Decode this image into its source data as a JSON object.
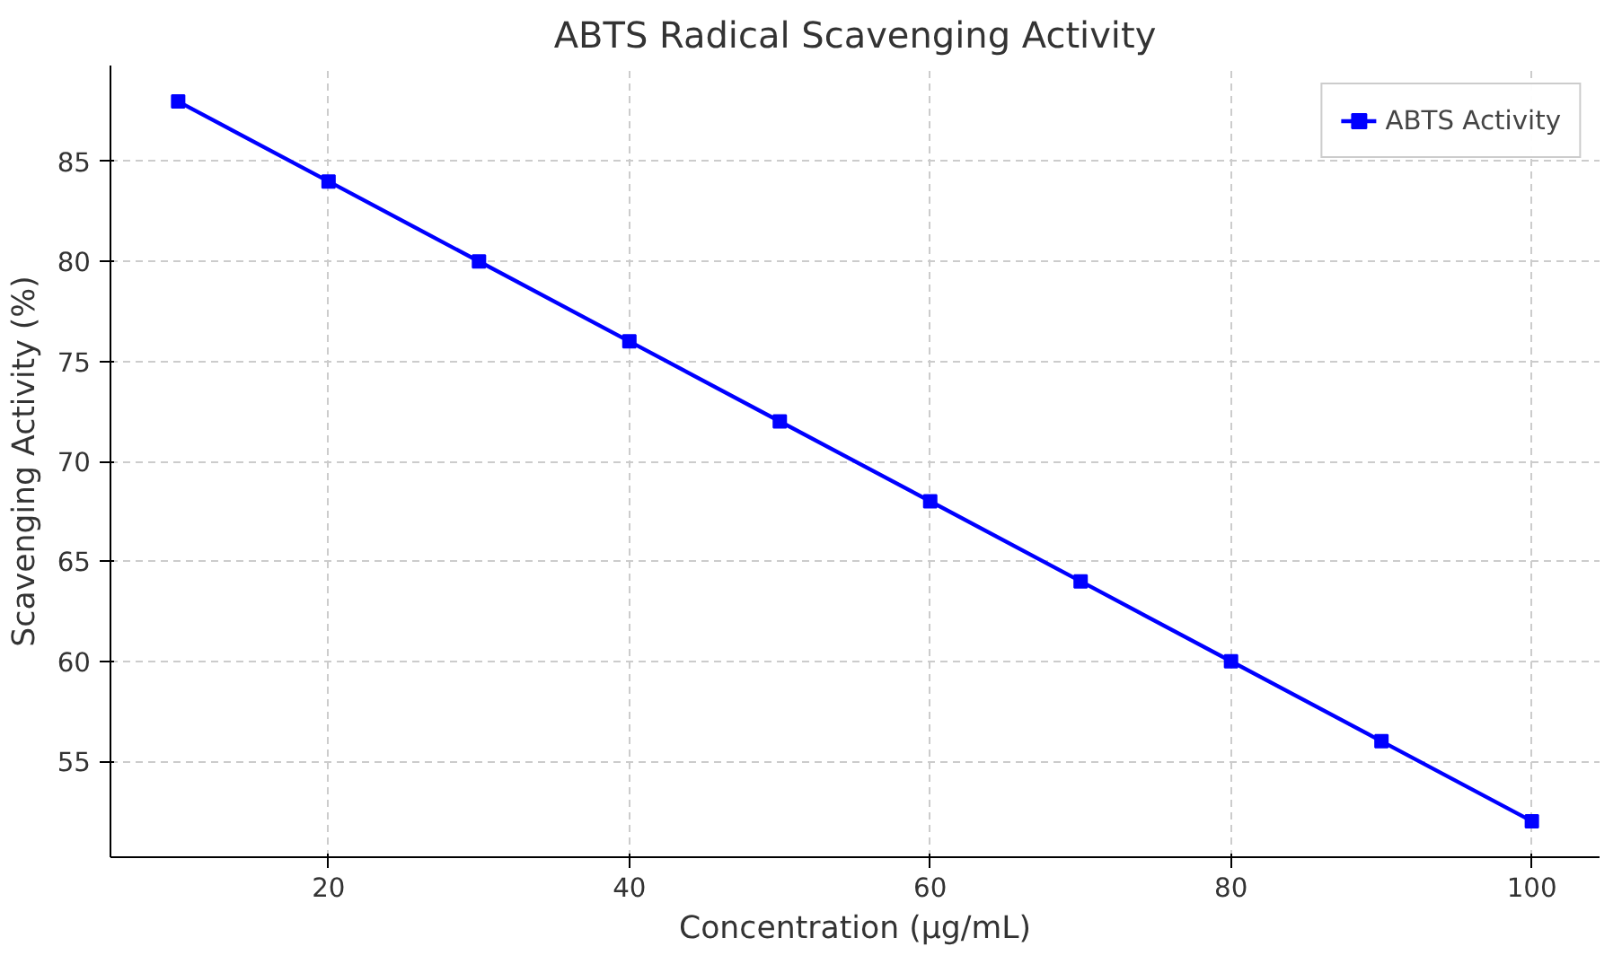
{
  "chart_data": {
    "type": "line",
    "title": "ABTS Radical Scavenging Activity",
    "xlabel": "Concentration (µg/mL)",
    "ylabel": "Scavenging Activity (%)",
    "x": [
      10,
      20,
      30,
      40,
      50,
      60,
      70,
      80,
      90,
      100
    ],
    "series": [
      {
        "name": "ABTS Activity",
        "color": "#0000ff",
        "values": [
          88,
          84,
          80,
          76,
          72,
          68,
          64,
          60,
          56,
          52
        ]
      }
    ],
    "xlim": [
      5.5,
      104.5
    ],
    "ylim": [
      50.2,
      89.8
    ],
    "xticks": [
      20,
      40,
      60,
      80,
      100
    ],
    "yticks": [
      55,
      60,
      65,
      70,
      75,
      80,
      85
    ],
    "grid": true,
    "legend": "top right",
    "marker": "square",
    "line_style": "solid"
  }
}
